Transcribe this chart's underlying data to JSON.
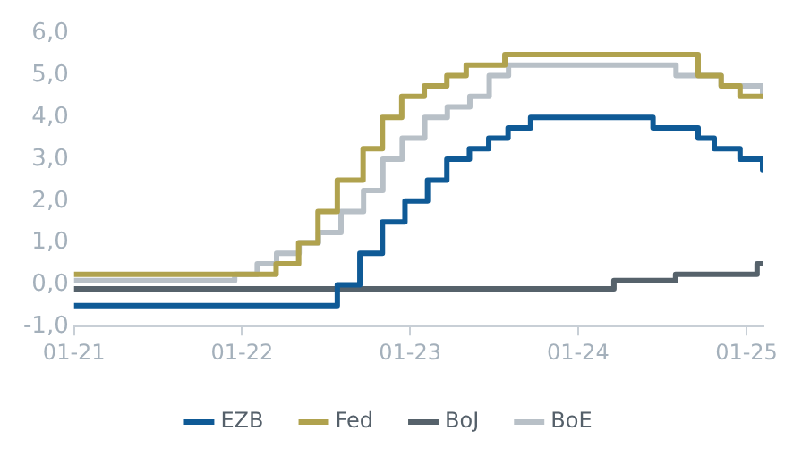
{
  "chart_data": {
    "type": "step",
    "xlim": [
      "2021-01-01",
      "2025-02-05"
    ],
    "ylim": [
      -1,
      6
    ],
    "xticks": [
      {
        "value": "2021-01-01",
        "label": "01-21"
      },
      {
        "value": "2022-01-01",
        "label": "01-22"
      },
      {
        "value": "2023-01-01",
        "label": "01-23"
      },
      {
        "value": "2024-01-01",
        "label": "01-24"
      },
      {
        "value": "2025-01-01",
        "label": "01-25"
      }
    ],
    "yticks": [
      {
        "value": -1,
        "label": "-1,0"
      },
      {
        "value": 0,
        "label": "0,0"
      },
      {
        "value": 1,
        "label": "1,0"
      },
      {
        "value": 2,
        "label": "2,0"
      },
      {
        "value": 3,
        "label": "3,0"
      },
      {
        "value": 4,
        "label": "4,0"
      },
      {
        "value": 5,
        "label": "5,0"
      },
      {
        "value": 6,
        "label": "6,0"
      }
    ],
    "grid": false,
    "legend": "bottom",
    "marker": "none",
    "line_style": "solid",
    "series": [
      {
        "name": "EZB",
        "color": "#0f5a96",
        "x": [
          "2021-01-01",
          "2022-07-27",
          "2022-09-14",
          "2022-11-02",
          "2022-12-21",
          "2023-02-08",
          "2023-03-22",
          "2023-05-10",
          "2023-06-21",
          "2023-08-02",
          "2023-09-20",
          "2024-06-12",
          "2024-09-18",
          "2024-10-23",
          "2024-12-18",
          "2025-02-05"
        ],
        "values": [
          -0.5,
          0,
          0.75,
          1.5,
          2,
          2.5,
          3,
          3.25,
          3.5,
          3.75,
          4,
          3.75,
          3.5,
          3.25,
          3,
          2.75
        ]
      },
      {
        "name": "Fed",
        "color": "#b0a24e",
        "x": [
          "2021-01-01",
          "2022-03-16",
          "2022-05-04",
          "2022-06-15",
          "2022-07-27",
          "2022-09-21",
          "2022-11-02",
          "2022-12-14",
          "2023-02-01",
          "2023-03-22",
          "2023-05-03",
          "2023-07-26",
          "2024-09-18",
          "2024-11-07",
          "2024-12-18",
          "2025-02-05"
        ],
        "values": [
          0.25,
          0.5,
          1,
          1.75,
          2.5,
          3.25,
          4,
          4.5,
          4.75,
          5,
          5.25,
          5.5,
          5,
          4.75,
          4.5,
          4.5
        ]
      },
      {
        "name": "BoJ",
        "color": "#56626b",
        "x": [
          "2021-01-01",
          "2024-03-19",
          "2024-07-31",
          "2025-01-24",
          "2025-02-05"
        ],
        "values": [
          -0.1,
          0.1,
          0.25,
          0.5,
          0.5
        ]
      },
      {
        "name": "BoE",
        "color": "#b8c0c7",
        "x": [
          "2021-01-01",
          "2021-12-16",
          "2022-02-03",
          "2022-03-17",
          "2022-05-05",
          "2022-06-16",
          "2022-08-04",
          "2022-09-22",
          "2022-11-03",
          "2022-12-15",
          "2023-02-02",
          "2023-03-23",
          "2023-05-11",
          "2023-06-22",
          "2023-08-03",
          "2024-08-01",
          "2024-11-07",
          "2025-02-05"
        ],
        "values": [
          0.1,
          0.25,
          0.5,
          0.75,
          1,
          1.25,
          1.75,
          2.25,
          3,
          3.5,
          4,
          4.25,
          4.5,
          5,
          5.25,
          5,
          4.75,
          4.5
        ]
      }
    ]
  }
}
